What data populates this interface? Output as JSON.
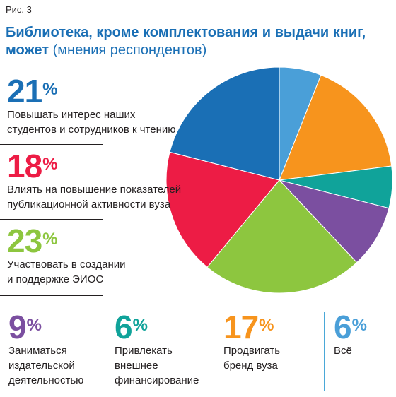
{
  "figure_label": "Рис. 3",
  "title_main": "Библиотека, кроме комплектования и выдачи книг, может",
  "title_sub": "(мнения респондентов)",
  "percent_sign": "%",
  "chart_data": {
    "type": "pie",
    "title": "Библиотека, кроме комплектования и выдачи книг, может (мнения респондентов)",
    "unit": "%",
    "slices": [
      {
        "label": "Всё",
        "value": 6,
        "color": "#4a9fd8"
      },
      {
        "label": "Продвигать бренд вуза",
        "value": 17,
        "color": "#f7941d"
      },
      {
        "label": "Привлекать внешнее финансирование",
        "value": 6,
        "color": "#10a39a"
      },
      {
        "label": "Заниматься издательской деятельностью",
        "value": 9,
        "color": "#7b4fa0"
      },
      {
        "label": "Участвовать в создании и поддержке ЭИОС",
        "value": 23,
        "color": "#8dc63f"
      },
      {
        "label": "Влиять на повышение показателей публикационной активности вуза",
        "value": 18,
        "color": "#ed1c45"
      },
      {
        "label": "Повышать интерес наших студентов и сотрудников к чтению",
        "value": 21,
        "color": "#1a6fb5"
      }
    ]
  },
  "stats": {
    "reading": {
      "value": "21",
      "desc1": "Повышать интерес наших",
      "desc2": "студентов и сотрудников к чтению",
      "color": "#1a6fb5"
    },
    "publication": {
      "value": "18",
      "desc1": "Влиять на повышение показателей",
      "desc2": "публикационной активности вуза",
      "color": "#ed1c45"
    },
    "eios": {
      "value": "23",
      "desc1": "Участвовать в создании",
      "desc2": "и поддержке ЭИОС",
      "color": "#8dc63f"
    },
    "publishing": {
      "value": "9",
      "desc1": "Заниматься",
      "desc2": "издательской",
      "desc3": "деятельностью",
      "color": "#7b4fa0"
    },
    "funding": {
      "value": "6",
      "desc1": "Привлекать",
      "desc2": "внешнее",
      "desc3": "финансирование",
      "color": "#10a39a"
    },
    "brand": {
      "value": "17",
      "desc1": "Продвигать",
      "desc2": "бренд вуза",
      "color": "#f7941d"
    },
    "all": {
      "value": "6",
      "desc1": "Всё",
      "color": "#4a9fd8"
    }
  }
}
